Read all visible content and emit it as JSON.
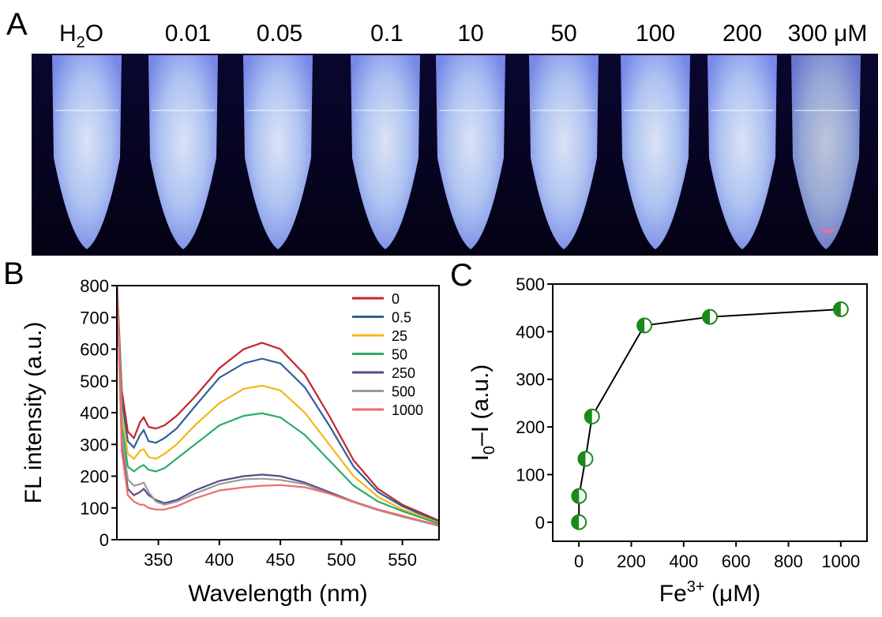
{
  "panel_labels": {
    "a": "A",
    "b": "B",
    "c": "C"
  },
  "photo": {
    "sample_labels": [
      "0.01",
      "0.05",
      "0.1",
      "10",
      "50",
      "100",
      "200",
      "300 μM"
    ],
    "water_label": {
      "base": "H",
      "sub": "2",
      "tail": "O"
    },
    "tube_colors": {
      "glow": "#a6c4ff",
      "bright": "#dce9ff",
      "background": "#05031a"
    }
  },
  "chart_data": [
    {
      "id": "B",
      "type": "line",
      "xlabel": "Wavelength  (nm)",
      "ylabel": "FL intensity (a.u.)",
      "xlim": [
        316,
        580
      ],
      "ylim": [
        0,
        800
      ],
      "xticks": [
        350,
        400,
        450,
        500,
        550
      ],
      "yticks": [
        0,
        100,
        200,
        300,
        400,
        500,
        600,
        700,
        800
      ],
      "legend_position": "top-right",
      "x": [
        316,
        320,
        325,
        330,
        335,
        338,
        342,
        348,
        355,
        365,
        380,
        400,
        420,
        435,
        450,
        470,
        490,
        510,
        530,
        550,
        565,
        580
      ],
      "series": [
        {
          "name": "0",
          "color": "#c0272d",
          "values": [
            820,
            470,
            340,
            320,
            370,
            385,
            355,
            350,
            360,
            390,
            450,
            540,
            600,
            620,
            600,
            520,
            390,
            250,
            160,
            110,
            85,
            60
          ]
        },
        {
          "name": "0.5",
          "color": "#2e5f9a",
          "values": [
            820,
            440,
            310,
            290,
            330,
            345,
            310,
            305,
            320,
            350,
            420,
            510,
            555,
            570,
            555,
            480,
            360,
            230,
            150,
            105,
            80,
            55
          ]
        },
        {
          "name": "25",
          "color": "#f2b81a",
          "values": [
            820,
            400,
            270,
            255,
            280,
            285,
            260,
            255,
            270,
            300,
            360,
            430,
            475,
            485,
            470,
            400,
            300,
            200,
            135,
            95,
            75,
            52
          ]
        },
        {
          "name": "50",
          "color": "#2eaa6a",
          "values": [
            820,
            360,
            230,
            215,
            230,
            235,
            220,
            215,
            225,
            255,
            300,
            360,
            390,
            398,
            385,
            330,
            250,
            170,
            120,
            90,
            70,
            50
          ]
        },
        {
          "name": "250",
          "color": "#5a4a86",
          "values": [
            820,
            300,
            160,
            140,
            150,
            160,
            140,
            125,
            115,
            125,
            155,
            185,
            200,
            205,
            200,
            180,
            150,
            120,
            95,
            75,
            60,
            45
          ]
        },
        {
          "name": "500",
          "color": "#9a9a9a",
          "values": [
            820,
            330,
            190,
            170,
            175,
            180,
            150,
            120,
            110,
            120,
            145,
            175,
            190,
            192,
            188,
            175,
            145,
            118,
            93,
            72,
            58,
            43
          ]
        },
        {
          "name": "1000",
          "color": "#ef6b6b",
          "values": [
            820,
            280,
            140,
            120,
            110,
            110,
            100,
            95,
            95,
            105,
            130,
            155,
            165,
            170,
            172,
            165,
            145,
            120,
            95,
            75,
            60,
            45
          ]
        }
      ]
    },
    {
      "id": "C",
      "type": "scatter",
      "xlabel": {
        "base": "Fe",
        "sup": "3+",
        "tail": " (μM)"
      },
      "ylabel": {
        "base": "I",
        "sub": "0",
        "tail": "–I (a.u.)"
      },
      "xlim": [
        -100,
        1100
      ],
      "ylim": [
        -40,
        500
      ],
      "xticks": [
        0,
        200,
        400,
        600,
        800,
        1000
      ],
      "yticks": [
        0,
        100,
        200,
        300,
        400,
        500
      ],
      "marker_color": "#1a8a1a",
      "x": [
        0,
        0.5,
        25,
        50,
        250,
        500,
        1000
      ],
      "values": [
        0,
        55,
        133,
        222,
        413,
        431,
        447
      ]
    }
  ]
}
